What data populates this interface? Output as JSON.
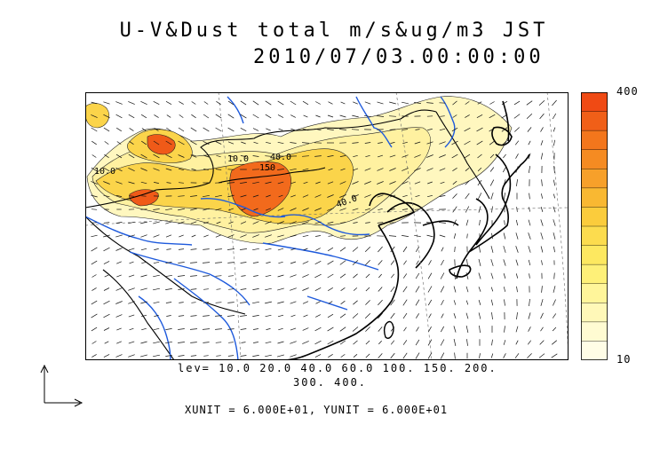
{
  "title": "U-V&Dust total m/s&ug/m3 JST",
  "timestamp": "2010/07/03.00:00:00",
  "colorbar": {
    "max_label": "400",
    "min_label": "10",
    "colors": [
      "#f04a14",
      "#f05f18",
      "#f3761c",
      "#f58b22",
      "#f7a02a",
      "#f9b832",
      "#fbcc3c",
      "#fcdc4e",
      "#fde860",
      "#fef078",
      "#fff59a",
      "#fff8b8",
      "#fffbd2",
      "#fffde6"
    ]
  },
  "legend": {
    "levels_line1": "lev= 10.0 20.0 40.0 60.0 100. 150. 200.",
    "levels_line2": "300. 400."
  },
  "units_text": "XUNIT = 6.000E+01, YUNIT = 6.000E+01",
  "contour_labels": [
    "10.0",
    "10.0",
    "40.0",
    "40.0",
    "150"
  ],
  "map": {
    "coastline_color": "#000000",
    "river_color": "#1e5adc",
    "dust_low_color": "#fff7bf",
    "dust_mid_color": "#fbcc3c",
    "dust_high_color": "#f04a14"
  }
}
